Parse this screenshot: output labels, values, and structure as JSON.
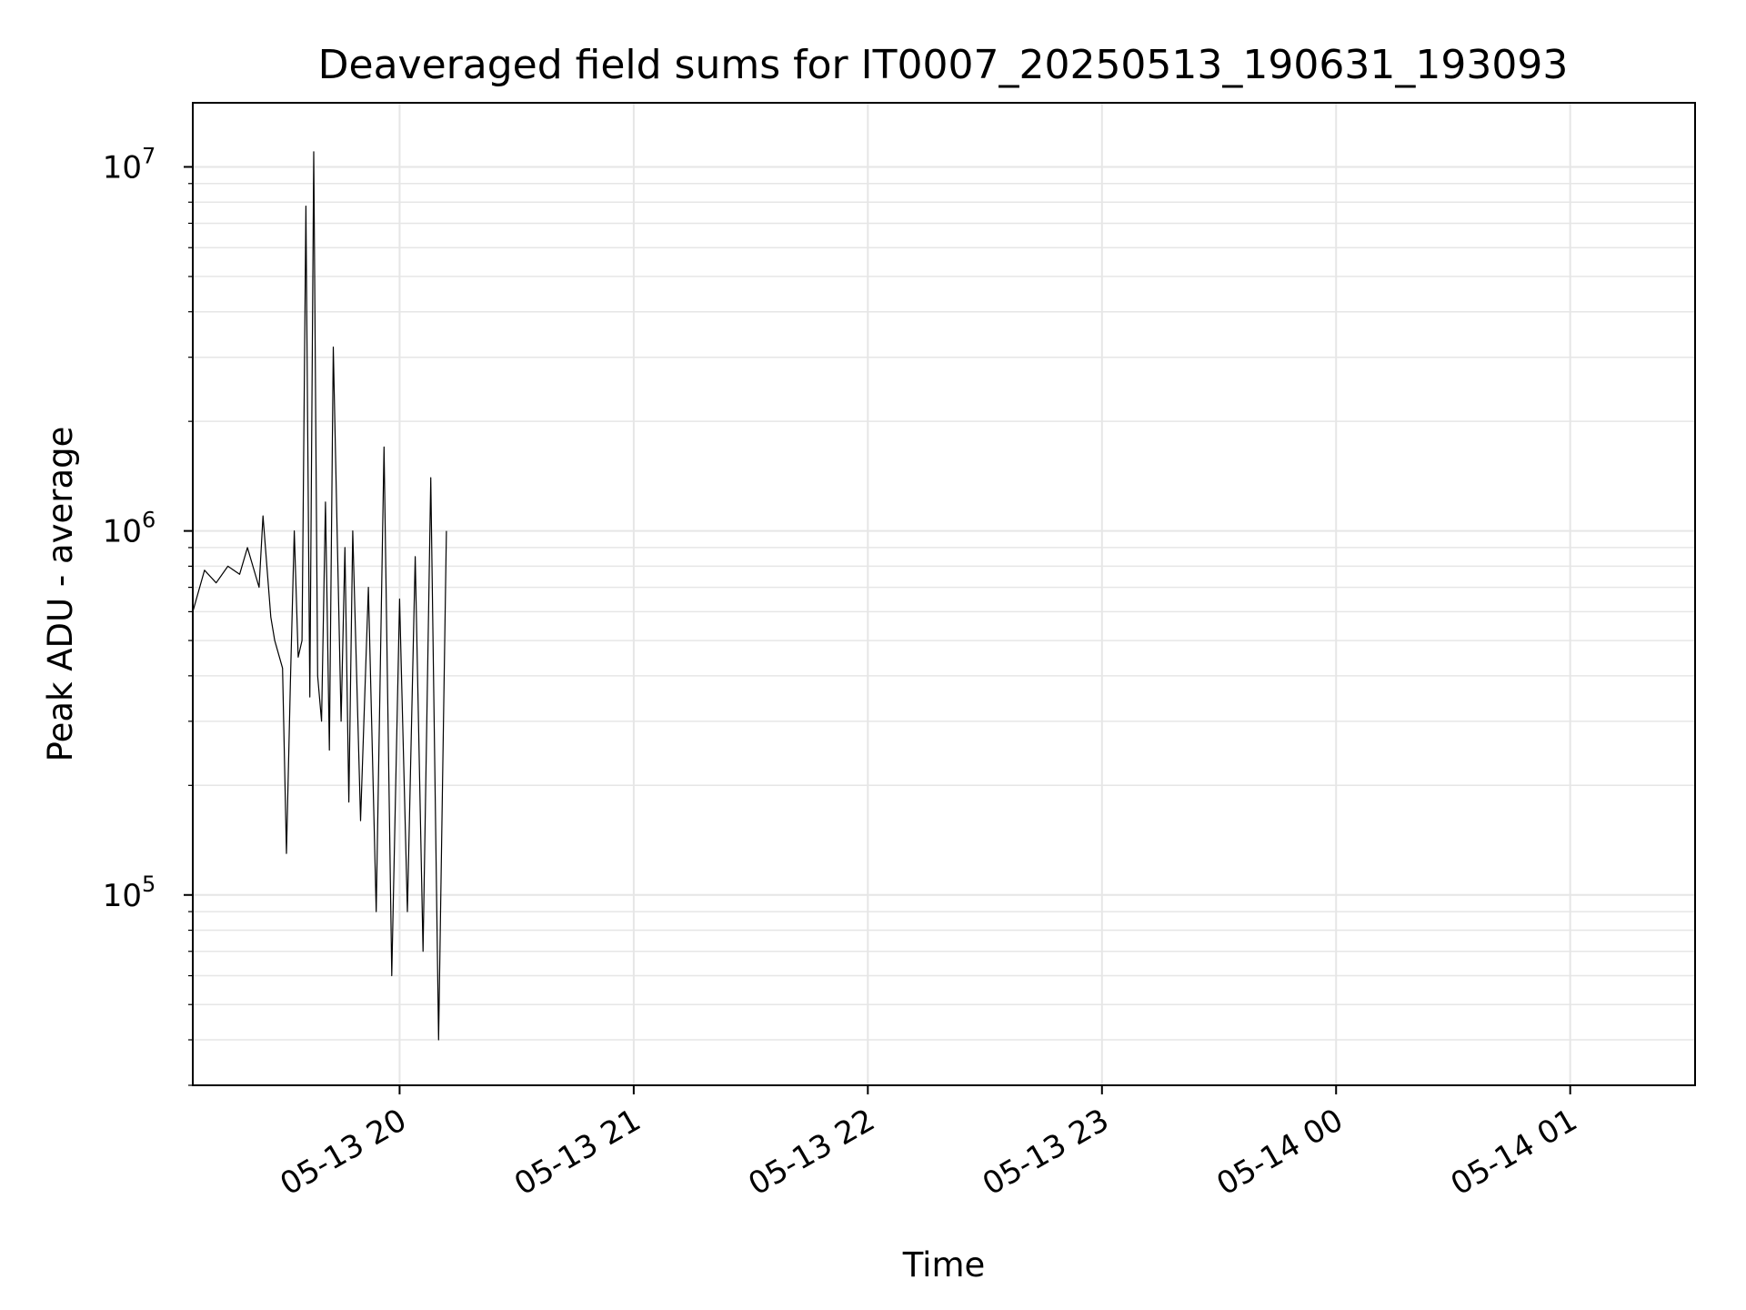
{
  "chart_data": {
    "type": "line",
    "title": "Deaveraged field sums for IT0007_20250513_190631_193093",
    "xlabel": "Time",
    "ylabel": "Peak ADU - average",
    "y_scale": "log",
    "grid": true,
    "line_color": "#000000",
    "grid_color": "#e6e6e6",
    "xlim": [
      "2025-05-13 19:07",
      "2025-05-14 01:32"
    ],
    "ylim": [
      30000,
      15000000
    ],
    "x_ticks": [
      {
        "value": "2025-05-13 20:00",
        "label": "05-13 20"
      },
      {
        "value": "2025-05-13 21:00",
        "label": "05-13 21"
      },
      {
        "value": "2025-05-13 22:00",
        "label": "05-13 22"
      },
      {
        "value": "2025-05-13 23:00",
        "label": "05-13 23"
      },
      {
        "value": "2025-05-14 00:00",
        "label": "05-14 00"
      },
      {
        "value": "2025-05-14 01:00",
        "label": "05-14 01"
      }
    ],
    "y_ticks": [
      {
        "value": 100000,
        "base": "10",
        "exp": "5"
      },
      {
        "value": 1000000,
        "base": "10",
        "exp": "6"
      },
      {
        "value": 10000000,
        "base": "10",
        "exp": "7"
      }
    ],
    "series": [
      {
        "x": [
          "2025-05-13 19:07",
          "2025-05-13 19:10",
          "2025-05-13 19:13",
          "2025-05-13 19:16",
          "2025-05-13 19:19",
          "2025-05-13 19:21",
          "2025-05-13 19:24",
          "2025-05-13 19:25",
          "2025-05-13 19:27",
          "2025-05-13 19:28",
          "2025-05-13 19:30",
          "2025-05-13 19:31",
          "2025-05-13 19:32",
          "2025-05-13 19:33",
          "2025-05-13 19:34",
          "2025-05-13 19:35",
          "2025-05-13 19:36",
          "2025-05-13 19:37",
          "2025-05-13 19:38",
          "2025-05-13 19:39",
          "2025-05-13 19:40",
          "2025-05-13 19:41",
          "2025-05-13 19:42",
          "2025-05-13 19:43",
          "2025-05-13 19:45",
          "2025-05-13 19:46",
          "2025-05-13 19:47",
          "2025-05-13 19:48",
          "2025-05-13 19:50",
          "2025-05-13 19:52",
          "2025-05-13 19:54",
          "2025-05-13 19:56",
          "2025-05-13 19:58",
          "2025-05-13 20:00",
          "2025-05-13 20:02",
          "2025-05-13 20:04",
          "2025-05-13 20:06",
          "2025-05-13 20:08",
          "2025-05-13 20:10",
          "2025-05-13 20:12"
        ],
        "y": [
          600000,
          780000,
          720000,
          800000,
          760000,
          900000,
          700000,
          1100000,
          580000,
          500000,
          420000,
          130000,
          380000,
          1000000,
          450000,
          500000,
          7800000,
          350000,
          11000000,
          400000,
          300000,
          1200000,
          250000,
          3200000,
          300000,
          900000,
          180000,
          1000000,
          160000,
          700000,
          90000,
          1700000,
          60000,
          650000,
          90000,
          850000,
          70000,
          1400000,
          40000,
          1000000
        ]
      }
    ]
  }
}
